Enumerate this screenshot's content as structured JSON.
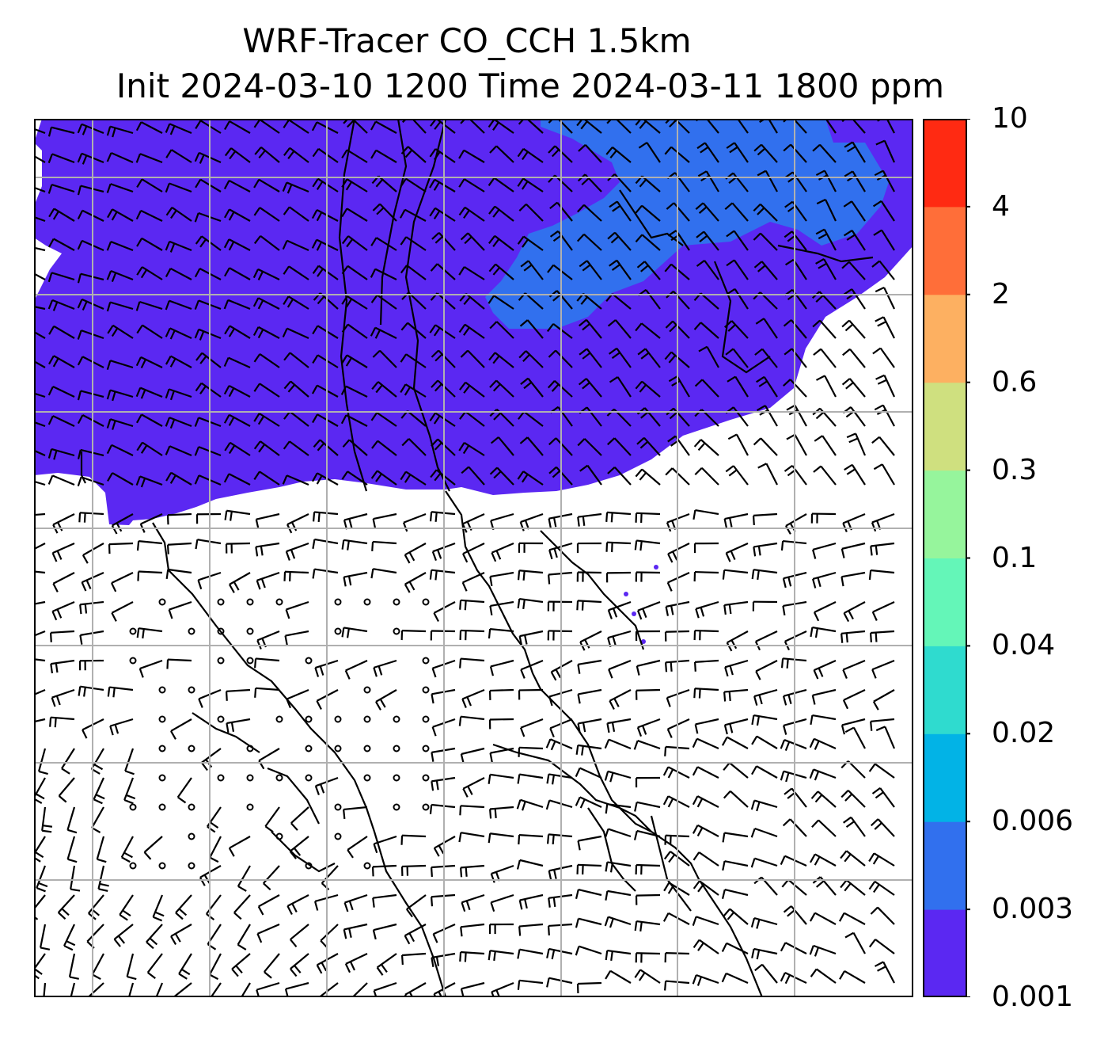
{
  "title": {
    "line1": "WRF-Tracer CO_CCH 1.5km",
    "line2": "Init 2024-03-10 1200 Time 2024-03-11 1800 ppm"
  },
  "colorbar": {
    "labels": [
      "0.001",
      "0.003",
      "0.006",
      "0.02",
      "0.04",
      "0.1",
      "0.3",
      "0.6",
      "2",
      "4",
      "10"
    ],
    "colors": [
      "#5b28f2",
      "#3170ee",
      "#02b3e6",
      "#2fdbcf",
      "#64f6b8",
      "#96f59c",
      "#cfe07f",
      "#fdb061",
      "#ff6e39",
      "#ff2a12"
    ]
  },
  "colors": {
    "tracer_low": "#5b28f2",
    "tracer_mid": "#3170ee",
    "grid": "#b0b0b0",
    "barb": "#000000"
  }
}
